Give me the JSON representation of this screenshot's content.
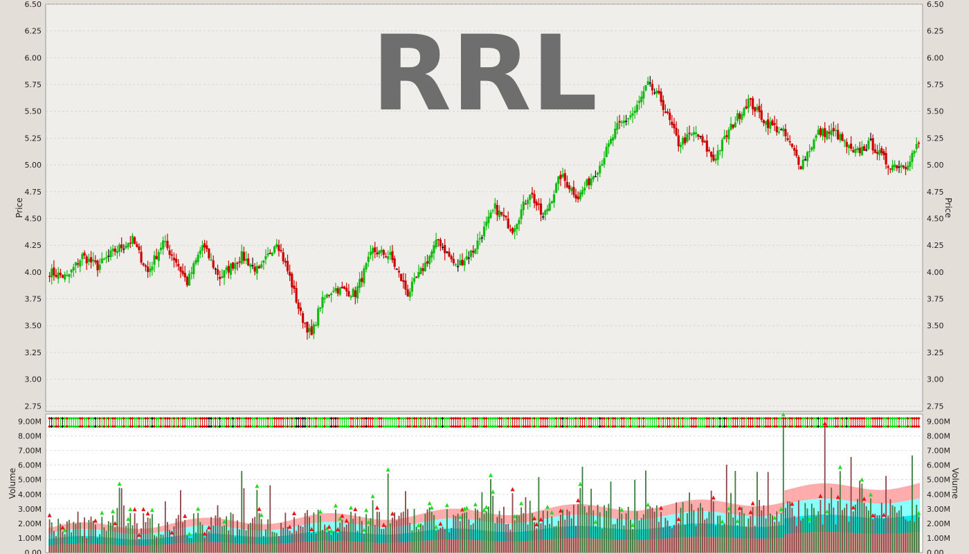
{
  "symbol": "RRL",
  "colors": {
    "up": "#11bb11",
    "down": "#cc0000",
    "neutral": "#111111",
    "panel_bg": "#f0eeea",
    "grid": "#c8c8c8",
    "vol_pink": "#ffaaaa",
    "vol_cyan": "#88ffff",
    "vol_cyan_dark": "#00e8e8"
  },
  "chart_data": [
    {
      "type": "ohlc",
      "ylabel": "Price",
      "ylim": [
        2.7,
        6.5
      ],
      "yticks": [
        "2.75",
        "3.00",
        "3.25",
        "3.50",
        "3.75",
        "4.00",
        "4.25",
        "4.50",
        "4.75",
        "5.00",
        "5.25",
        "5.50",
        "5.75",
        "6.00",
        "6.25",
        "6.50"
      ],
      "grid": true,
      "close_anchors": [
        [
          0,
          4.0
        ],
        [
          8,
          3.95
        ],
        [
          15,
          4.15
        ],
        [
          22,
          4.05
        ],
        [
          30,
          4.2
        ],
        [
          38,
          4.3
        ],
        [
          45,
          4.0
        ],
        [
          52,
          4.28
        ],
        [
          58,
          4.1
        ],
        [
          63,
          3.9
        ],
        [
          70,
          4.25
        ],
        [
          78,
          3.95
        ],
        [
          88,
          4.15
        ],
        [
          96,
          4.0
        ],
        [
          104,
          4.3
        ],
        [
          110,
          3.95
        ],
        [
          115,
          3.6
        ],
        [
          120,
          3.4
        ],
        [
          124,
          3.7
        ],
        [
          130,
          3.85
        ],
        [
          140,
          3.8
        ],
        [
          148,
          4.2
        ],
        [
          156,
          4.15
        ],
        [
          164,
          3.8
        ],
        [
          170,
          4.0
        ],
        [
          178,
          4.3
        ],
        [
          186,
          4.05
        ],
        [
          194,
          4.2
        ],
        [
          204,
          4.6
        ],
        [
          212,
          4.4
        ],
        [
          220,
          4.75
        ],
        [
          226,
          4.5
        ],
        [
          234,
          4.9
        ],
        [
          242,
          4.7
        ],
        [
          252,
          5.0
        ],
        [
          260,
          5.35
        ],
        [
          268,
          5.5
        ],
        [
          274,
          5.75
        ],
        [
          280,
          5.6
        ],
        [
          288,
          5.2
        ],
        [
          296,
          5.3
        ],
        [
          304,
          5.05
        ],
        [
          312,
          5.35
        ],
        [
          320,
          5.6
        ],
        [
          328,
          5.4
        ],
        [
          336,
          5.3
        ],
        [
          344,
          5.0
        ],
        [
          352,
          5.3
        ],
        [
          360,
          5.3
        ],
        [
          368,
          5.1
        ],
        [
          376,
          5.2
        ],
        [
          384,
          5.0
        ],
        [
          392,
          5.0
        ],
        [
          398,
          5.2
        ]
      ]
    },
    {
      "type": "bar",
      "ylabel": "Volume",
      "ylim": [
        0,
        9500000
      ],
      "yticks": [
        "0.00",
        "1.00M",
        "2.00M",
        "3.00M",
        "4.00M",
        "5.00M",
        "6.00M",
        "7.00M",
        "8.00M",
        "9.00M"
      ],
      "grid": true
    }
  ]
}
